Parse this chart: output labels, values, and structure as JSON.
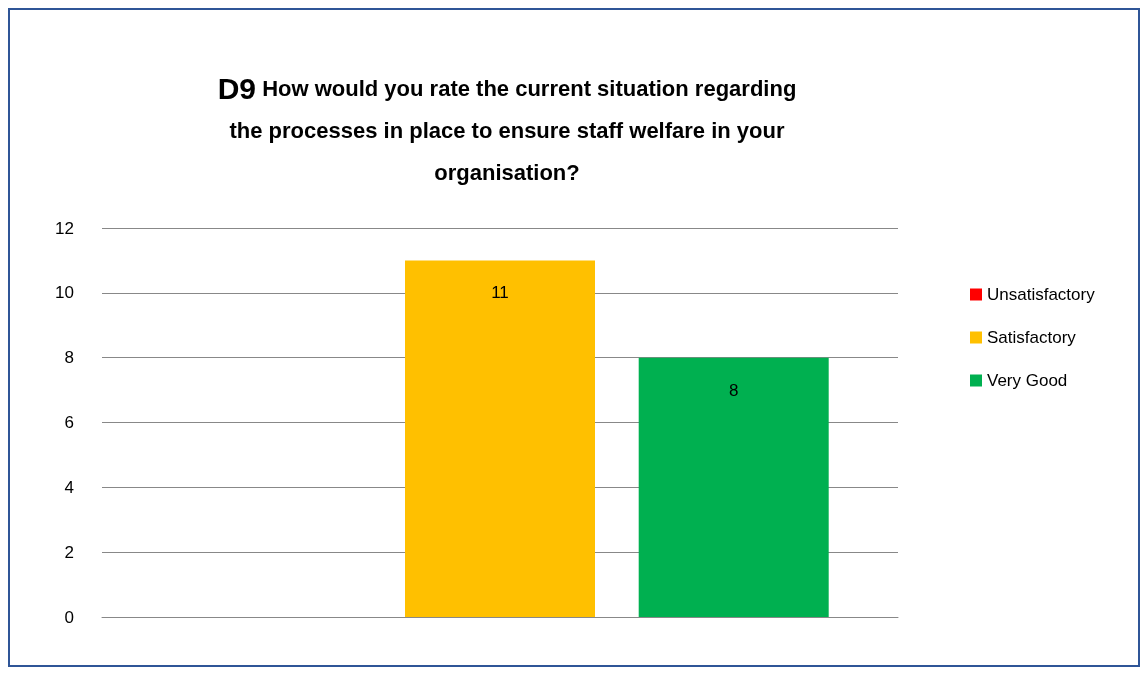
{
  "chart_data": {
    "type": "bar",
    "title": "D9 How would you rate the current situation regarding\nthe processes in place to ensure staff welfare in your\norganisation?",
    "categories": [
      null
    ],
    "series": [
      {
        "name": "Unsatisfactory",
        "color": "#ff0000",
        "values": [
          0
        ],
        "value_labels": [
          null
        ]
      },
      {
        "name": "Satisfactory",
        "color": "#ffc000",
        "values": [
          11
        ],
        "value_labels": [
          "11"
        ]
      },
      {
        "name": "Very Good",
        "color": "#00b050",
        "values": [
          8
        ],
        "value_labels": [
          "8"
        ]
      }
    ],
    "ylim": [
      0,
      12
    ],
    "yticks": [
      0,
      2,
      4,
      6,
      8,
      10,
      12
    ],
    "grid": "y",
    "legend": "right"
  }
}
